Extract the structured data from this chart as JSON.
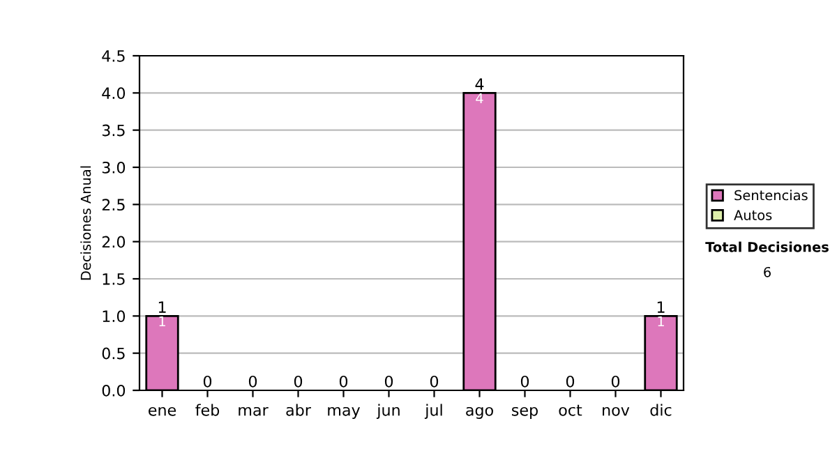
{
  "chart_data": {
    "type": "bar",
    "stacked": true,
    "ylabel": "Decisiones Anual",
    "categories": [
      "ene",
      "feb",
      "mar",
      "abr",
      "may",
      "jun",
      "jul",
      "ago",
      "sep",
      "oct",
      "nov",
      "dic"
    ],
    "series": [
      {
        "name": "Sentencias",
        "color": "#dd77bb",
        "values": [
          1,
          0,
          0,
          0,
          0,
          0,
          0,
          4,
          0,
          0,
          0,
          1
        ],
        "value_labels": [
          "1",
          null,
          null,
          null,
          null,
          null,
          null,
          "4",
          null,
          null,
          null,
          "1"
        ]
      },
      {
        "name": "Autos",
        "color": "#ddeeaa",
        "values": [
          0,
          0,
          0,
          0,
          0,
          0,
          0,
          0,
          0,
          0,
          0,
          0
        ]
      }
    ],
    "totals": [
      "1",
      "0",
      "0",
      "0",
      "0",
      "0",
      "0",
      "4",
      "0",
      "0",
      "0",
      "1"
    ],
    "ylim": [
      0,
      4.5
    ],
    "yticks": [
      "0.0",
      "0.5",
      "1.0",
      "1.5",
      "2.0",
      "2.5",
      "3.0",
      "3.5",
      "4.0",
      "4.5"
    ],
    "grid": "y",
    "legend": "right",
    "annotations": [
      "Total Decisiones",
      "6"
    ]
  }
}
